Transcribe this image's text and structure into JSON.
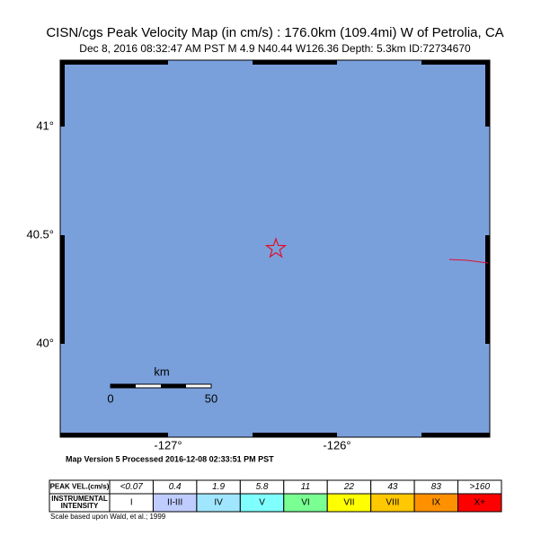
{
  "header": {
    "title": "CISN/cgs Peak Velocity Map (in cm/s) : 176.0km (109.4mi) W of Petrolia, CA",
    "subtitle": "Dec  8, 2016 08:32:47 AM PST   M 4.9   N40.44 W126.36   Depth: 5.3km   ID:72734670"
  },
  "map": {
    "lat_labels": [
      "41°",
      "40.5°",
      "40°"
    ],
    "lon_labels": [
      "-127°",
      "-126°"
    ],
    "scale_unit": "km",
    "scale_labels": [
      "0",
      "50"
    ]
  },
  "footer": {
    "version": "Map Version 5 Processed 2016-12-08 02:33:51 PM PST",
    "credit": "Scale based upon Wald, et al.; 1999"
  },
  "legend": {
    "velocity_header": "PEAK VEL.(cm/s)",
    "intensity_header": [
      "INSTRUMENTAL",
      "INTENSITY"
    ],
    "velocities": [
      "<0.07",
      "0.4",
      "1.9",
      "5.8",
      "11",
      "22",
      "43",
      "83",
      ">160"
    ],
    "intensities": [
      "I",
      "II-III",
      "IV",
      "V",
      "VI",
      "VII",
      "VIII",
      "IX",
      "X+"
    ]
  }
}
